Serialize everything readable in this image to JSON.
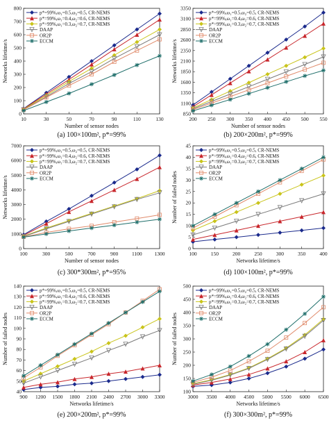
{
  "legend_default": [
    "p*=99%,ω₁=0.5,ω₂=0.5, CR-NEMS",
    "p*=99%,ω₁=0.4,ω₂=0.6, CR-NEMS",
    "p*=99%,ω₁=0.3,ω₂=0.7, CR-NEMS",
    "DAAP",
    "OR2P",
    "ECCM"
  ],
  "legend_c": [
    "p*=99%,ω₁=0.5,ω₂=0.5, CR-NEMS",
    "p*=99%,ω₁=0.4,ω₂=0.6, CR-NEMS",
    "p*=99%,ω₁=0.3,ω₂=0.7, CR-NEMS",
    "DAAP",
    "OR2P",
    "ECCM"
  ],
  "series_colors": [
    "#1a2a8c",
    "#c8262b",
    "#c9c41a",
    "#7a7a7a",
    "#e08a6a",
    "#1e6e6a"
  ],
  "chart_data": [
    {
      "id": "a",
      "type": "line",
      "caption": "(a) 100×100m², p*=99%",
      "xlabel": "Number of sensor nodes",
      "ylabel": "Networks lifetime/s",
      "xlim": [
        10,
        130
      ],
      "xticks": [
        10,
        30,
        50,
        70,
        90,
        110,
        130
      ],
      "ylim": [
        0,
        800
      ],
      "yticks": [
        0,
        100,
        200,
        300,
        400,
        500,
        600,
        700,
        800
      ],
      "x": [
        10,
        30,
        50,
        70,
        90,
        110,
        130
      ],
      "series": [
        {
          "name": "p*=99%,ω₁=0.5,ω₂=0.5, CR-NEMS",
          "values": [
            40,
            160,
            280,
            400,
            520,
            640,
            760
          ]
        },
        {
          "name": "p*=99%,ω₁=0.4,ω₂=0.6, CR-NEMS",
          "values": [
            38,
            150,
            260,
            375,
            490,
            600,
            715
          ]
        },
        {
          "name": "p*=99%,ω₁=0.3,ω₂=0.7, CR-NEMS",
          "values": [
            35,
            140,
            245,
            345,
            445,
            545,
            640
          ]
        },
        {
          "name": "DAAP",
          "values": [
            32,
            130,
            230,
            320,
            420,
            510,
            600
          ]
        },
        {
          "name": "OR2P",
          "values": [
            30,
            125,
            215,
            300,
            395,
            480,
            565
          ]
        },
        {
          "name": "ECCM",
          "values": [
            25,
            90,
            155,
            225,
            295,
            370,
            440
          ]
        }
      ]
    },
    {
      "id": "b",
      "type": "line",
      "caption": "(b) 200×200m², p*=99%",
      "xlabel": "Number of sensor nodes",
      "ylabel": "Networks lifetime/s",
      "xlim": [
        200,
        550
      ],
      "xticks": [
        200,
        250,
        300,
        350,
        400,
        450,
        500,
        550
      ],
      "ylim": [
        850,
        3350
      ],
      "yticks": [
        850,
        1100,
        1350,
        1600,
        1850,
        2100,
        2350,
        2600,
        2850,
        3100,
        3350
      ],
      "x": [
        200,
        250,
        300,
        350,
        400,
        450,
        500,
        550
      ],
      "series": [
        {
          "name": "p*=99%,ω₁=0.5,ω₂=0.5, CR-NEMS",
          "values": [
            1060,
            1370,
            1680,
            1990,
            2300,
            2610,
            2920,
            3250
          ]
        },
        {
          "name": "p*=99%,ω₁=0.4,ω₂=0.6, CR-NEMS",
          "values": [
            1020,
            1300,
            1580,
            1860,
            2140,
            2420,
            2700,
            2990
          ]
        },
        {
          "name": "p*=99%,ω₁=0.3,ω₂=0.7, CR-NEMS",
          "values": [
            990,
            1190,
            1390,
            1590,
            1790,
            1990,
            2190,
            2400
          ]
        },
        {
          "name": "DAAP",
          "values": [
            970,
            1145,
            1320,
            1495,
            1670,
            1845,
            2020,
            2200
          ]
        },
        {
          "name": "OR2P",
          "values": [
            950,
            1105,
            1260,
            1420,
            1580,
            1740,
            1900,
            2060
          ]
        },
        {
          "name": "ECCM",
          "values": [
            920,
            1055,
            1190,
            1330,
            1470,
            1610,
            1750,
            1880
          ]
        }
      ]
    },
    {
      "id": "c",
      "type": "line",
      "caption": "(c) 300*300m², p*=95%",
      "xlabel": "Number of sensor nodes",
      "ylabel": "Networks lifetime/s",
      "xlim": [
        100,
        1300
      ],
      "xticks": [
        100,
        300,
        500,
        700,
        900,
        1100,
        1300
      ],
      "ylim": [
        0,
        7000
      ],
      "yticks": [
        0,
        1000,
        2000,
        3000,
        4000,
        5000,
        6000,
        7000
      ],
      "x": [
        100,
        300,
        500,
        700,
        900,
        1100,
        1300
      ],
      "series": [
        {
          "name": "p*=99%,ω₁=0.5,ω₂=0.5, CR-NEMS",
          "values": [
            950,
            1850,
            2700,
            3600,
            4500,
            5400,
            6350
          ]
        },
        {
          "name": "p*=99%,ω₁=0.4,ω₂=0.6, CR-NEMS",
          "values": [
            900,
            1700,
            2500,
            3250,
            4000,
            4750,
            5550
          ]
        },
        {
          "name": "p*=99%,ω₁=0.3,ω₂=0.7, CR-NEMS",
          "values": [
            850,
            1400,
            1900,
            2400,
            2900,
            3400,
            3950
          ]
        },
        {
          "name": "DAAP",
          "values": [
            830,
            1350,
            1850,
            2350,
            2850,
            3350,
            3800
          ]
        },
        {
          "name": "OR2P",
          "values": [
            800,
            1100,
            1350,
            1550,
            1800,
            2050,
            2300
          ]
        },
        {
          "name": "ECCM",
          "values": [
            780,
            1000,
            1200,
            1400,
            1600,
            1800,
            2000
          ]
        }
      ]
    },
    {
      "id": "d",
      "type": "line",
      "caption": "(d) 100×100m², p*=99%",
      "xlabel": "Networks lifetime/s",
      "ylabel": "Number of failed nodes",
      "xlim": [
        100,
        400
      ],
      "xticks": [
        100,
        150,
        200,
        250,
        300,
        350,
        400
      ],
      "ylim": [
        0,
        45
      ],
      "yticks": [
        0,
        5,
        10,
        15,
        20,
        25,
        30,
        35,
        40,
        45
      ],
      "x": [
        100,
        150,
        200,
        250,
        300,
        350,
        400
      ],
      "series": [
        {
          "name": "p*=99%,ω₁=0.5,ω₂=0.5, CR-NEMS",
          "values": [
            3,
            4,
            5,
            6,
            7,
            8,
            9
          ]
        },
        {
          "name": "p*=99%,ω₁=0.4,ω₂=0.6, CR-NEMS",
          "values": [
            4,
            6,
            8,
            10,
            12,
            14,
            16
          ]
        },
        {
          "name": "p*=99%,ω₁=0.3,ω₂=0.7, CR-NEMS",
          "values": [
            8,
            12,
            16,
            20,
            24,
            28,
            32
          ]
        },
        {
          "name": "DAAP",
          "values": [
            6,
            9,
            12,
            15,
            18,
            21,
            24
          ]
        },
        {
          "name": "OR2P",
          "values": [
            9,
            14,
            19,
            24,
            29,
            34,
            39
          ]
        },
        {
          "name": "ECCM",
          "values": [
            10,
            15,
            20,
            25,
            30,
            35,
            40
          ]
        }
      ]
    },
    {
      "id": "e",
      "type": "line",
      "caption": "(e) 200×200m², p*=99%",
      "xlabel": "Networks lifetime/s",
      "ylabel": "Number of failed nodes",
      "xlim": [
        900,
        3300
      ],
      "xticks": [
        900,
        1200,
        1500,
        1800,
        2100,
        2400,
        2700,
        3000,
        3300
      ],
      "ylim": [
        40,
        140
      ],
      "yticks": [
        40,
        50,
        60,
        70,
        80,
        90,
        100,
        110,
        120,
        130,
        140
      ],
      "x": [
        900,
        1200,
        1500,
        1800,
        2100,
        2400,
        2700,
        3000,
        3300
      ],
      "series": [
        {
          "name": "p*=99%,ω₁=0.5,ω₂=0.5, CR-NEMS",
          "values": [
            42,
            44,
            45,
            47,
            48,
            50,
            52,
            54,
            56
          ]
        },
        {
          "name": "p*=99%,ω₁=0.4,ω₂=0.6, CR-NEMS",
          "values": [
            44,
            47,
            49,
            52,
            54,
            57,
            59,
            62,
            65
          ]
        },
        {
          "name": "p*=99%,ω₁=0.3,ω₂=0.7, CR-NEMS",
          "values": [
            50,
            57,
            64,
            71,
            78,
            86,
            93,
            101,
            109
          ]
        },
        {
          "name": "DAAP",
          "values": [
            48,
            54,
            60,
            66,
            72,
            79,
            85,
            92,
            98
          ]
        },
        {
          "name": "OR2P",
          "values": [
            53,
            63,
            74,
            84,
            94,
            104,
            115,
            126,
            137
          ]
        },
        {
          "name": "ECCM",
          "values": [
            55,
            65,
            75,
            85,
            95,
            105,
            115,
            125,
            135
          ]
        }
      ]
    },
    {
      "id": "f",
      "type": "line",
      "caption": "(f) 300×300m², p*=99%",
      "xlabel": "Networks lifetime/s",
      "ylabel": "Number of failed nodes",
      "xlim": [
        3000,
        6500
      ],
      "xticks": [
        3000,
        3500,
        4000,
        4500,
        5000,
        5500,
        6000,
        6500
      ],
      "ylim": [
        100,
        500
      ],
      "yticks": [
        100,
        150,
        200,
        250,
        300,
        350,
        400,
        450,
        500
      ],
      "x": [
        3000,
        3500,
        4000,
        4500,
        5000,
        5500,
        6000,
        6500
      ],
      "series": [
        {
          "name": "p*=99%,ω₁=0.5,ω₂=0.5, CR-NEMS",
          "values": [
            120,
            125,
            135,
            150,
            170,
            195,
            225,
            260
          ]
        },
        {
          "name": "p*=99%,ω₁=0.4,ω₂=0.6, CR-NEMS",
          "values": [
            125,
            135,
            148,
            165,
            188,
            215,
            250,
            295
          ]
        },
        {
          "name": "p*=99%,ω₁=0.3,ω₂=0.7, CR-NEMS",
          "values": [
            130,
            145,
            165,
            190,
            225,
            265,
            315,
            375
          ]
        },
        {
          "name": "DAAP",
          "values": [
            128,
            143,
            163,
            188,
            222,
            262,
            310,
            370
          ]
        },
        {
          "name": "OR2P",
          "values": [
            135,
            155,
            180,
            215,
            255,
            305,
            360,
            420
          ]
        },
        {
          "name": "ECCM",
          "values": [
            140,
            165,
            195,
            235,
            280,
            335,
            395,
            460
          ]
        }
      ]
    }
  ]
}
